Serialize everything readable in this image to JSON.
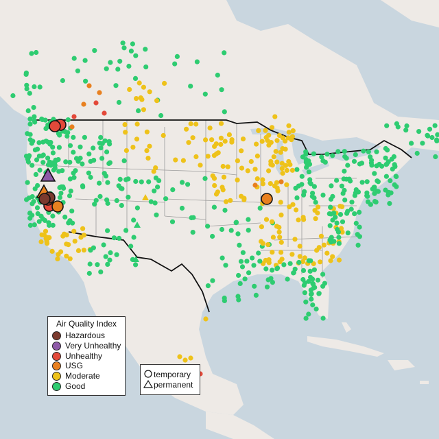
{
  "legend": {
    "title": "Air Quality Index",
    "categories": [
      {
        "key": "hazardous",
        "label": "Hazardous",
        "color": "#7b3a2e"
      },
      {
        "key": "very_unhealthy",
        "label": "Very Unhealthy",
        "color": "#8e5aa8"
      },
      {
        "key": "unhealthy",
        "label": "Unhealthy",
        "color": "#e3493a"
      },
      {
        "key": "usg",
        "label": "USG",
        "color": "#e8801f"
      },
      {
        "key": "moderate",
        "label": "Moderate",
        "color": "#eec21a"
      },
      {
        "key": "good",
        "label": "Good",
        "color": "#2ecc71"
      }
    ]
  },
  "monitor_types": {
    "temporary": "temporary",
    "permanent": "permanent"
  },
  "colors": {
    "ocean": "#c9d6df",
    "land": "#eeeae6",
    "outline": "#111111",
    "state_lines": "#9a9a9a"
  }
}
